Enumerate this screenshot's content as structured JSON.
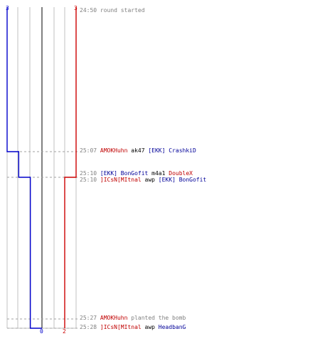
{
  "colors": {
    "team_a": "#0000cc",
    "team_b": "#cc0000",
    "grid": "#c0c0c0",
    "center": "#808080",
    "time": "#808080"
  },
  "chart_data": {
    "type": "line",
    "top_labels": {
      "left": "3",
      "right": "3"
    },
    "bottom_labels": {
      "left": "0",
      "right": "2"
    },
    "max_alive": 3,
    "series": [
      {
        "team": "a",
        "steps": [
          {
            "time": "24:50",
            "alive": 3
          },
          {
            "time": "25:07",
            "alive": 2
          },
          {
            "time": "25:10",
            "alive": 1
          },
          {
            "time": "25:28",
            "alive": 0
          }
        ]
      },
      {
        "team": "b",
        "steps": [
          {
            "time": "24:50",
            "alive": 3
          },
          {
            "time": "25:10",
            "alive": 2
          }
        ]
      }
    ]
  },
  "events": [
    {
      "time": "24:50",
      "parts": [
        {
          "text": "round started",
          "cls": "grey"
        }
      ]
    },
    {
      "time": "25:07",
      "parts": [
        {
          "text": "AMOKHuhn",
          "cls": "red"
        },
        {
          "text": " ak47 ",
          "cls": "blk"
        },
        {
          "text": "[EKK] CrashkiD",
          "cls": "blue"
        }
      ]
    },
    {
      "time": "25:10",
      "parts": [
        {
          "text": "[EKK] BonGofit",
          "cls": "blue"
        },
        {
          "text": " m4a1 ",
          "cls": "blk"
        },
        {
          "text": "DoubleX",
          "cls": "red"
        }
      ]
    },
    {
      "time": "25:10",
      "parts": [
        {
          "text": "]ICsN[MItnal",
          "cls": "red"
        },
        {
          "text": " awp ",
          "cls": "blk"
        },
        {
          "text": "[EKK] BonGofit",
          "cls": "blue"
        }
      ]
    },
    {
      "time": "25:27",
      "parts": [
        {
          "text": "AMOKHuhn",
          "cls": "red"
        },
        {
          "text": " planted the bomb",
          "cls": "grey"
        }
      ]
    },
    {
      "time": "25:28",
      "parts": [
        {
          "text": "]ICsN[MItnal",
          "cls": "red"
        },
        {
          "text": " awp ",
          "cls": "blk"
        },
        {
          "text": "HeadbanG",
          "cls": "blue"
        }
      ]
    }
  ]
}
